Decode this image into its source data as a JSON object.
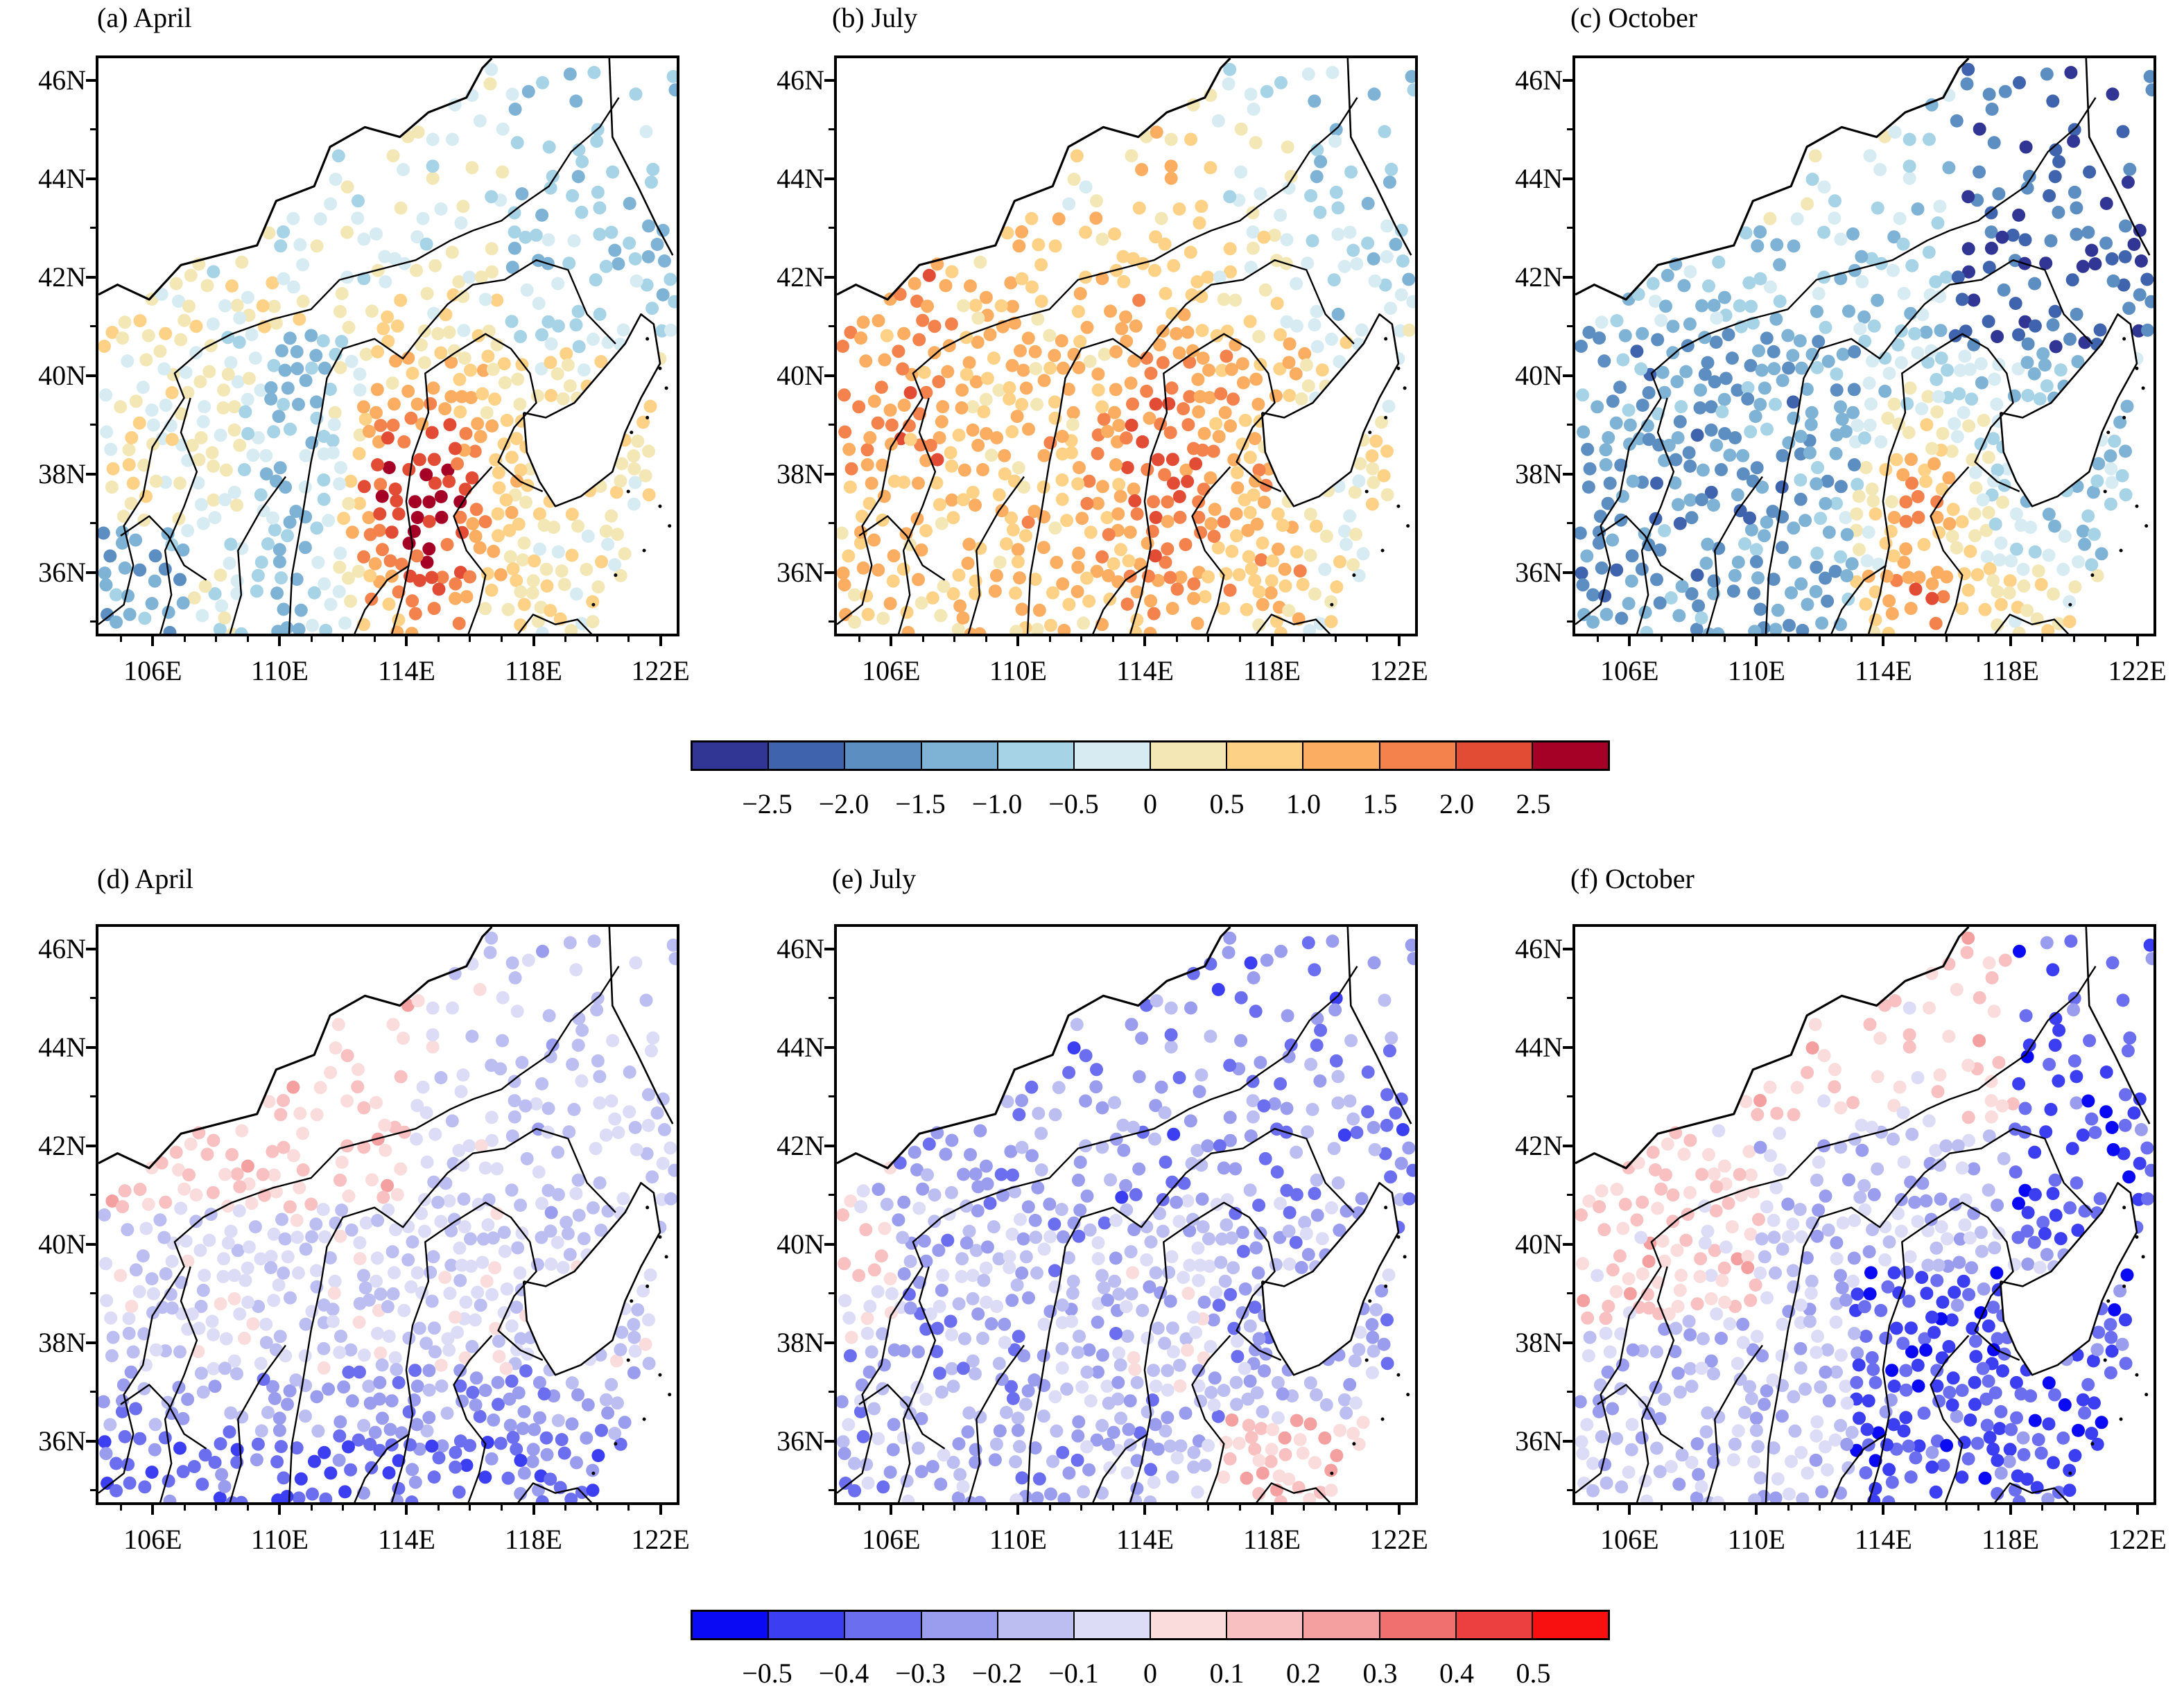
{
  "panels": [
    {
      "id": "a",
      "title": "(a) April",
      "scheme": "div1",
      "trend": "apr1"
    },
    {
      "id": "b",
      "title": "(b) July",
      "scheme": "div1",
      "trend": "jul1"
    },
    {
      "id": "c",
      "title": "(c) October",
      "scheme": "div1",
      "trend": "oct1"
    },
    {
      "id": "d",
      "title": "(d) April",
      "scheme": "div2",
      "trend": "apr2"
    },
    {
      "id": "e",
      "title": "(e) July",
      "scheme": "div2",
      "trend": "jul2"
    },
    {
      "id": "f",
      "title": "(f) October",
      "scheme": "div2",
      "trend": "oct2"
    }
  ],
  "axes": {
    "lat_labels": [
      "46N",
      "44N",
      "42N",
      "40N",
      "38N",
      "36N"
    ],
    "lat_values": [
      46,
      44,
      42,
      40,
      38,
      36
    ],
    "lon_labels": [
      "106E",
      "110E",
      "114E",
      "118E",
      "122E"
    ],
    "lon_values": [
      106,
      110,
      114,
      118,
      122
    ],
    "lon_range": [
      104.2,
      122.6
    ],
    "lat_range": [
      34.7,
      46.5
    ]
  },
  "colorbars": [
    {
      "id": "top",
      "colors": [
        "#313695",
        "#3f64ad",
        "#5c8ec2",
        "#7fb3d5",
        "#a7d3e6",
        "#d6ebf2",
        "#f3e7b5",
        "#fdd287",
        "#fbae61",
        "#f4824c",
        "#e24c35",
        "#a50026"
      ],
      "labels": [
        "−2.5",
        "−2.0",
        "−1.5",
        "−1.0",
        "−0.5",
        "0",
        "0.5",
        "1.0",
        "1.5",
        "2.0",
        "2.5"
      ]
    },
    {
      "id": "bottom",
      "colors": [
        "#0a0af5",
        "#3c3ef2",
        "#6c6ef0",
        "#9a9cee",
        "#bcbef2",
        "#dcdcf6",
        "#fadcdc",
        "#f8c0c0",
        "#f4a0a0",
        "#f07070",
        "#ec4040",
        "#f81010"
      ],
      "labels": [
        "−0.5",
        "−0.4",
        "−0.3",
        "−0.2",
        "−0.1",
        "0",
        "0.1",
        "0.2",
        "0.3",
        "0.4",
        "0.5"
      ]
    }
  ]
}
